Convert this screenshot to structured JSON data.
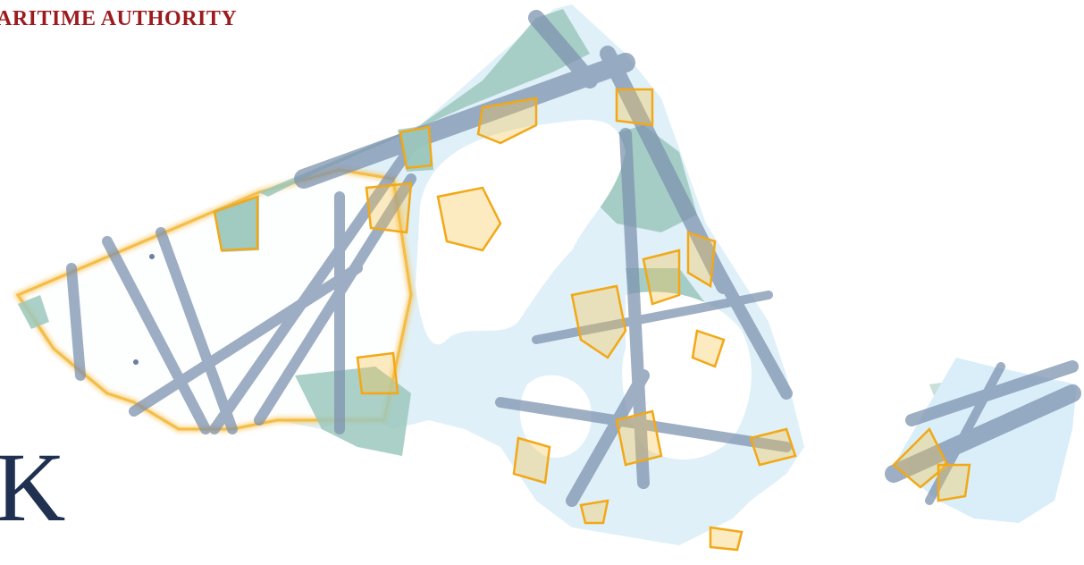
{
  "header": {
    "title": "ARITIME AUTHORITY"
  },
  "footer": {
    "letter": "K"
  },
  "colors": {
    "header": "#9b1b1e",
    "letter": "#1f3050",
    "shallow_water": "#d9eef8",
    "zone_green": "#9cc8bd",
    "lanes": "#7e93b0",
    "outline": "#f2a817"
  }
}
